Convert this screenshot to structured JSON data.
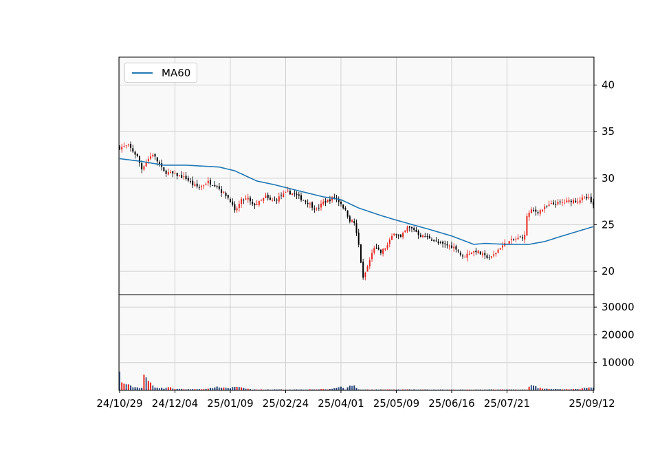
{
  "chart_data": {
    "type": "candlestick",
    "colors": {
      "up": "#e8251e",
      "down": "#000000",
      "ma": "#1f77b4",
      "grid": "#d0d0d0",
      "panel_bg": "#f9f9f9"
    },
    "legend": {
      "entries": [
        "MA60"
      ],
      "placement": "upper-left"
    },
    "x_tick_labels": [
      "24/10/29",
      "24/12/04",
      "25/01/09",
      "25/02/24",
      "25/04/01",
      "25/05/09",
      "25/06/16",
      "25/07/21",
      "25/09/12"
    ],
    "x_tick_index": [
      0,
      25,
      50,
      75,
      100,
      125,
      150,
      175,
      214
    ],
    "price_axis": {
      "ylim": [
        17.5,
        43
      ],
      "ticks": [
        20,
        25,
        30,
        35,
        40
      ]
    },
    "volume_axis": {
      "ylim": [
        0,
        34500
      ],
      "ticks": [
        10000,
        20000,
        30000
      ]
    },
    "price_anchors": [
      [
        0,
        33.3
      ],
      [
        4,
        33.5
      ],
      [
        8,
        32.3
      ],
      [
        10,
        31.0
      ],
      [
        12,
        31.8
      ],
      [
        15,
        32.6
      ],
      [
        20,
        30.7
      ],
      [
        25,
        30.4
      ],
      [
        30,
        30.0
      ],
      [
        33,
        29.3
      ],
      [
        36,
        29.0
      ],
      [
        40,
        29.6
      ],
      [
        44,
        29.2
      ],
      [
        46,
        28.6
      ],
      [
        48,
        28.2
      ],
      [
        50,
        27.6
      ],
      [
        52,
        26.4
      ],
      [
        55,
        27.6
      ],
      [
        58,
        27.8
      ],
      [
        60,
        27.1
      ],
      [
        63,
        27.4
      ],
      [
        66,
        28.0
      ],
      [
        68,
        27.6
      ],
      [
        70,
        27.6
      ],
      [
        73,
        28.1
      ],
      [
        76,
        28.5
      ],
      [
        79,
        28.3
      ],
      [
        82,
        27.8
      ],
      [
        85,
        27.4
      ],
      [
        87,
        27.0
      ],
      [
        89,
        26.6
      ],
      [
        92,
        27.4
      ],
      [
        95,
        27.7
      ],
      [
        97,
        28.0
      ],
      [
        100,
        27.3
      ],
      [
        102,
        26.5
      ],
      [
        104,
        25.5
      ],
      [
        106,
        25.2
      ],
      [
        108,
        22.8
      ],
      [
        110,
        19.2
      ],
      [
        112,
        20.5
      ],
      [
        115,
        22.6
      ],
      [
        118,
        22.0
      ],
      [
        121,
        22.8
      ],
      [
        124,
        24.2
      ],
      [
        127,
        23.6
      ],
      [
        130,
        24.7
      ],
      [
        133,
        24.5
      ],
      [
        136,
        23.8
      ],
      [
        140,
        23.6
      ],
      [
        144,
        23.0
      ],
      [
        148,
        22.8
      ],
      [
        152,
        22.5
      ],
      [
        155,
        21.5
      ],
      [
        158,
        22.0
      ],
      [
        161,
        22.2
      ],
      [
        165,
        21.6
      ],
      [
        168,
        21.5
      ],
      [
        172,
        22.6
      ],
      [
        175,
        23.1
      ],
      [
        178,
        23.4
      ],
      [
        181,
        23.6
      ],
      [
        183,
        23.8
      ],
      [
        184,
        26.0
      ],
      [
        186,
        26.5
      ],
      [
        189,
        26.4
      ],
      [
        192,
        26.8
      ],
      [
        195,
        27.2
      ],
      [
        198,
        27.3
      ],
      [
        201,
        27.4
      ],
      [
        204,
        27.6
      ],
      [
        207,
        27.6
      ],
      [
        210,
        27.9
      ],
      [
        212,
        27.8
      ],
      [
        214,
        27.0
      ]
    ],
    "ma60_anchors": [
      [
        0,
        32.1
      ],
      [
        10,
        31.8
      ],
      [
        20,
        31.4
      ],
      [
        30,
        31.4
      ],
      [
        45,
        31.2
      ],
      [
        52,
        30.8
      ],
      [
        62,
        29.7
      ],
      [
        70,
        29.3
      ],
      [
        80,
        28.7
      ],
      [
        92,
        28.0
      ],
      [
        100,
        27.7
      ],
      [
        108,
        26.8
      ],
      [
        118,
        26.0
      ],
      [
        125,
        25.5
      ],
      [
        140,
        24.5
      ],
      [
        150,
        23.8
      ],
      [
        160,
        22.9
      ],
      [
        165,
        23.0
      ],
      [
        175,
        22.9
      ],
      [
        185,
        22.9
      ],
      [
        192,
        23.2
      ],
      [
        200,
        23.8
      ],
      [
        214,
        24.8
      ]
    ],
    "volume_anchors": [
      [
        0,
        6200
      ],
      [
        1,
        2800
      ],
      [
        3,
        2200
      ],
      [
        5,
        1500
      ],
      [
        7,
        1100
      ],
      [
        9,
        1000
      ],
      [
        10,
        900
      ],
      [
        11,
        5800
      ],
      [
        12,
        4000
      ],
      [
        13,
        3400
      ],
      [
        14,
        2600
      ],
      [
        15,
        1800
      ],
      [
        16,
        1200
      ],
      [
        18,
        900
      ],
      [
        20,
        700
      ],
      [
        22,
        1200
      ],
      [
        25,
        500
      ],
      [
        30,
        400
      ],
      [
        40,
        500
      ],
      [
        43,
        1200
      ],
      [
        50,
        800
      ],
      [
        52,
        1300
      ],
      [
        60,
        300
      ],
      [
        80,
        300
      ],
      [
        95,
        400
      ],
      [
        100,
        1300
      ],
      [
        102,
        300
      ],
      [
        104,
        2000
      ],
      [
        106,
        1600
      ],
      [
        108,
        300
      ],
      [
        130,
        300
      ],
      [
        150,
        250
      ],
      [
        170,
        300
      ],
      [
        184,
        300
      ],
      [
        185,
        1600
      ],
      [
        187,
        1700
      ],
      [
        189,
        900
      ],
      [
        192,
        700
      ],
      [
        195,
        500
      ],
      [
        200,
        400
      ],
      [
        208,
        400
      ],
      [
        210,
        1100
      ],
      [
        212,
        1000
      ],
      [
        214,
        900
      ]
    ]
  }
}
